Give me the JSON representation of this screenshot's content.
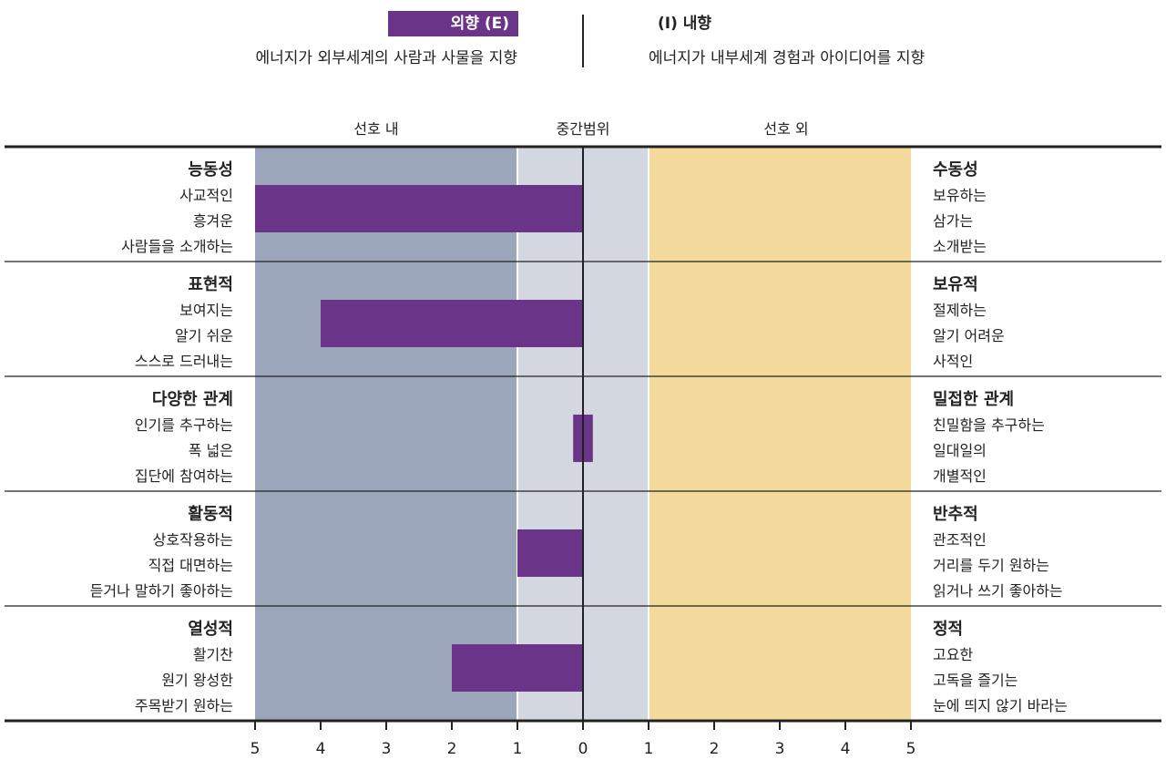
{
  "legend": {
    "extravert_label": "외향 (E)",
    "extravert_desc": "에너지가 외부세계의 사람과 사물을 지향",
    "introvert_label": "(I) 내향",
    "introvert_desc": "에너지가 내부세계 경험과 아이디어를 지향"
  },
  "bands": {
    "left": "선호 내",
    "middle": "중간범위",
    "right": "선호 외"
  },
  "colors": {
    "bar": "#6a3589",
    "left_band": "#9ba6ba",
    "middle_band": "#d2d7e0",
    "right_band": "#f4d99d"
  },
  "chart_data": {
    "type": "bar",
    "orientation": "horizontal-diverging",
    "x_ticks": [
      "5",
      "4",
      "3",
      "2",
      "1",
      "0",
      "1",
      "2",
      "3",
      "4",
      "5"
    ],
    "xlim": [
      -5,
      5
    ],
    "facets": [
      {
        "left_title": "능동성",
        "left_items": [
          "사교적인",
          "흥겨운",
          "사람들을 소개하는"
        ],
        "right_title": "수동성",
        "right_items": [
          "보유하는",
          "삼가는",
          "소개받는"
        ],
        "value": -5
      },
      {
        "left_title": "표현적",
        "left_items": [
          "보여지는",
          "알기 쉬운",
          "스스로 드러내는"
        ],
        "right_title": "보유적",
        "right_items": [
          "절제하는",
          "알기 어려운",
          "사적인"
        ],
        "value": -4
      },
      {
        "left_title": "다양한 관계",
        "left_items": [
          "인기를 추구하는",
          "폭 넓은",
          "집단에 참여하는"
        ],
        "right_title": "밀접한 관계",
        "right_items": [
          "친밀함을 추구하는",
          "일대일의",
          "개별적인"
        ],
        "value": 0.15
      },
      {
        "left_title": "활동적",
        "left_items": [
          "상호작용하는",
          "직접 대면하는",
          "듣거나 말하기 좋아하는"
        ],
        "right_title": "반추적",
        "right_items": [
          "관조적인",
          "거리를 두기 원하는",
          "읽거나 쓰기 좋아하는"
        ],
        "value": -1
      },
      {
        "left_title": "열성적",
        "left_items": [
          "활기찬",
          "원기 왕성한",
          "주목받기 원하는"
        ],
        "right_title": "정적",
        "right_items": [
          "고요한",
          "고독을 즐기는",
          "눈에 띄지 않기 바라는"
        ],
        "value": -2
      }
    ]
  }
}
